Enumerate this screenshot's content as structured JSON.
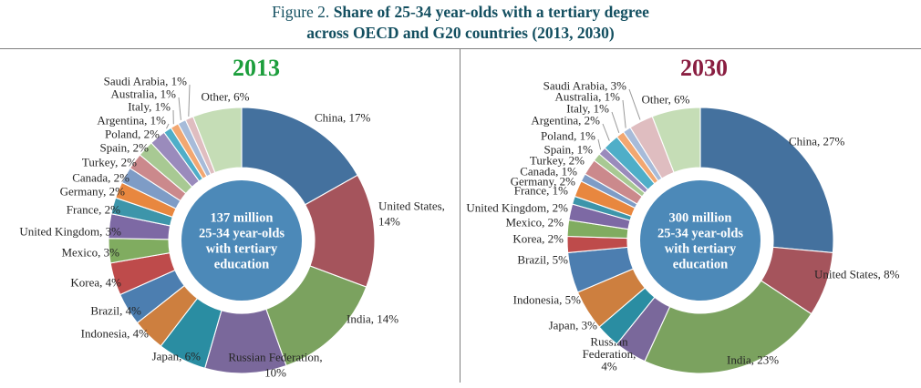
{
  "figure": {
    "title_prefix": "Figure 2. ",
    "title_line1": "Share of 25-34 year-olds with a tertiary degree",
    "title_line2": "across OECD and G20 countries (2013, 2030)",
    "title_color": "#134F60",
    "divider_color": "#7F7F7F",
    "label_color": "#262626",
    "leader_line_color": "#999999"
  },
  "chart_data": [
    {
      "type": "pie",
      "subtype": "donut",
      "title": "2013",
      "title_color": "#1C9E3C",
      "units": "%",
      "center_label_lines": [
        "137 million",
        "25-34 year-olds",
        "with tertiary",
        "education"
      ],
      "center_circle_color": "#4C89B8",
      "slices": [
        {
          "label": "China",
          "value": 17,
          "color": "#44719E"
        },
        {
          "label": "United States",
          "value": 14,
          "color": "#A5545C"
        },
        {
          "label": "India",
          "value": 14,
          "color": "#7BA25F"
        },
        {
          "label": "Russian Federation",
          "value": 10,
          "color": "#7A689B"
        },
        {
          "label": "Japan",
          "value": 6,
          "color": "#2A8DA2"
        },
        {
          "label": "Indonesia",
          "value": 4,
          "color": "#CD7F3F"
        },
        {
          "label": "Brazil",
          "value": 4,
          "color": "#4C7EB0"
        },
        {
          "label": "Korea",
          "value": 4,
          "color": "#BE4B4B"
        },
        {
          "label": "Mexico",
          "value": 3,
          "color": "#80AC60"
        },
        {
          "label": "United Kingdom",
          "value": 3,
          "color": "#7D69A4"
        },
        {
          "label": "France",
          "value": 2,
          "color": "#3D95AA"
        },
        {
          "label": "Germany",
          "value": 2,
          "color": "#E8873F"
        },
        {
          "label": "Canada",
          "value": 2,
          "color": "#7E9CC6"
        },
        {
          "label": "Turkey",
          "value": 2,
          "color": "#CB898C"
        },
        {
          "label": "Spain",
          "value": 2,
          "color": "#A8C993"
        },
        {
          "label": "Poland",
          "value": 2,
          "color": "#9A8BBC"
        },
        {
          "label": "Argentina",
          "value": 1,
          "color": "#4FAEC8"
        },
        {
          "label": "Italy",
          "value": 1,
          "color": "#F2A771"
        },
        {
          "label": "Australia",
          "value": 1,
          "color": "#A7BBD9"
        },
        {
          "label": "Saudi Arabia",
          "value": 1,
          "color": "#DFBDC0"
        },
        {
          "label": "Other",
          "value": 6,
          "color": "#C5DDB6"
        }
      ]
    },
    {
      "type": "pie",
      "subtype": "donut",
      "title": "2030",
      "title_color": "#8A1E41",
      "units": "%",
      "center_label_lines": [
        "300 million",
        "25-34 year-olds",
        "with tertiary",
        "education"
      ],
      "center_circle_color": "#4C89B8",
      "slices": [
        {
          "label": "China",
          "value": 27,
          "color": "#44719E"
        },
        {
          "label": "United States",
          "value": 8,
          "color": "#A5545C"
        },
        {
          "label": "India",
          "value": 23,
          "color": "#7BA25F"
        },
        {
          "label": "Russian Federation",
          "value": 4,
          "color": "#7A689B"
        },
        {
          "label": "Japan",
          "value": 3,
          "color": "#2A8DA2"
        },
        {
          "label": "Indonesia",
          "value": 5,
          "color": "#CD7F3F"
        },
        {
          "label": "Brazil",
          "value": 5,
          "color": "#4C7EB0"
        },
        {
          "label": "Korea",
          "value": 2,
          "color": "#BE4B4B"
        },
        {
          "label": "Mexico",
          "value": 2,
          "color": "#80AC60"
        },
        {
          "label": "United Kingdom",
          "value": 2,
          "color": "#7D69A4"
        },
        {
          "label": "France",
          "value": 1,
          "color": "#3D95AA"
        },
        {
          "label": "Germany",
          "value": 2,
          "color": "#E8873F"
        },
        {
          "label": "Canada",
          "value": 1,
          "color": "#7E9CC6"
        },
        {
          "label": "Turkey",
          "value": 2,
          "color": "#CB898C"
        },
        {
          "label": "Spain",
          "value": 1,
          "color": "#A8C993"
        },
        {
          "label": "Poland",
          "value": 1,
          "color": "#9A8BBC"
        },
        {
          "label": "Argentina",
          "value": 2,
          "color": "#4FAEC8"
        },
        {
          "label": "Italy",
          "value": 1,
          "color": "#F2A771"
        },
        {
          "label": "Australia",
          "value": 1,
          "color": "#A7BBD9"
        },
        {
          "label": "Saudi Arabia",
          "value": 3,
          "color": "#DFBDC0"
        },
        {
          "label": "Other",
          "value": 6,
          "color": "#C5DDB6"
        }
      ]
    }
  ]
}
